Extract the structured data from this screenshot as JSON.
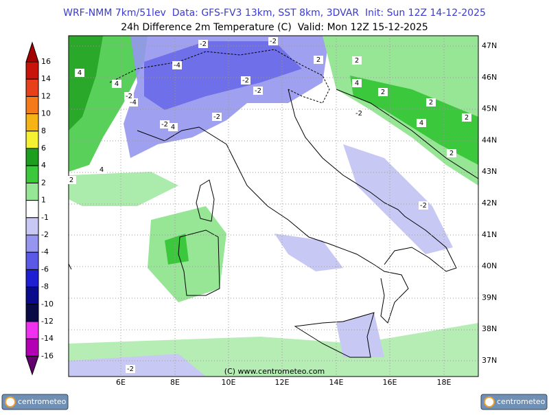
{
  "header": {
    "title": "WRF-NMM 7km/51lev  Data: GFS-FV3 13km, SST 8km, 3DVAR  Init: Sun 12Z 14-12-2025",
    "subtitle": "24h Difference 2m Temperature (C)  Valid: Mon 12Z 15-12-2025"
  },
  "colorbar": {
    "labels": [
      16,
      14,
      12,
      10,
      8,
      6,
      4,
      2,
      1,
      -1,
      -2,
      -4,
      -6,
      -8,
      -10,
      -12,
      -14,
      -16
    ],
    "colors": [
      "#a50000",
      "#c8140a",
      "#e8401a",
      "#f57a1a",
      "#f5b414",
      "#f5f032",
      "#1e9e1e",
      "#3cc83c",
      "#96e696",
      "#ffffff",
      "#c8c8f5",
      "#9696f0",
      "#5a5ae6",
      "#1e1ed2",
      "#0a0a8c",
      "#0a0a46",
      "#f032f0",
      "#b400b4",
      "#64006e"
    ]
  },
  "map": {
    "lon_labels": [
      "6E",
      "8E",
      "10E",
      "12E",
      "14E",
      "16E",
      "18E"
    ],
    "lat_labels": [
      "47N",
      "46N",
      "45N",
      "44N",
      "43N",
      "42N",
      "41N",
      "40N",
      "39N",
      "38N",
      "37N"
    ],
    "contour_labels": [
      "-2",
      "-2",
      "-4",
      "-4",
      "-2",
      "-2",
      "-2",
      "-2",
      "-2",
      "4",
      "4",
      "4",
      "2",
      "-2",
      "4",
      "4",
      "2",
      "2",
      "2",
      "2",
      "-2",
      "-2",
      "2",
      "4",
      "2"
    ],
    "credit": "(C) www.centrometeo.com"
  },
  "logos": [
    "centrometeo",
    "centrometeo"
  ]
}
